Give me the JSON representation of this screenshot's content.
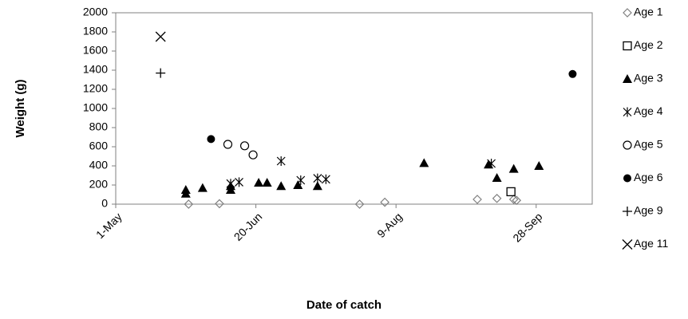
{
  "chart_data": {
    "type": "scatter",
    "x_label": "Date of catch",
    "y_label": "Weight (g)",
    "xlim": [
      "1-May",
      "18-Oct"
    ],
    "xticks": [
      "1-May",
      "20-Jun",
      "9-Aug",
      "28-Sep"
    ],
    "ylim": [
      0,
      2000
    ],
    "yticks": [
      0,
      200,
      400,
      600,
      800,
      1000,
      1200,
      1400,
      1600,
      1800,
      2000
    ],
    "grid": false,
    "legend": "right",
    "series": [
      {
        "name": "Age 1",
        "marker": "diamond-open",
        "color": "#808080",
        "x": [
          "27-May",
          "7-Jun",
          "27-Jul",
          "5-Aug",
          "7-Sep",
          "14-Sep",
          "20-Sep",
          "21-Sep"
        ],
        "values": [
          0,
          5,
          0,
          20,
          50,
          60,
          50,
          40
        ]
      },
      {
        "name": "Age 2",
        "marker": "square-open",
        "color": "#000000",
        "x": [
          "19-Sep"
        ],
        "values": [
          130
        ]
      },
      {
        "name": "Age 3",
        "marker": "triangle",
        "color": "#000000",
        "x": [
          "26-May",
          "26-May",
          "1-Jun",
          "11-Jun",
          "11-Jun",
          "21-Jun",
          "24-Jun",
          "29-Jun",
          "5-Jul",
          "12-Jul",
          "19-Aug",
          "11-Sep",
          "14-Sep",
          "20-Sep",
          "29-Sep"
        ],
        "values": [
          150,
          110,
          170,
          190,
          150,
          225,
          225,
          190,
          200,
          190,
          430,
          415,
          275,
          370,
          400
        ]
      },
      {
        "name": "Age 4",
        "marker": "star",
        "color": "#000000",
        "x": [
          "11-Jun",
          "14-Jun",
          "29-Jun",
          "6-Jul",
          "12-Jul",
          "15-Jul",
          "12-Sep"
        ],
        "values": [
          215,
          230,
          450,
          250,
          270,
          260,
          425
        ]
      },
      {
        "name": "Age 5",
        "marker": "circle-open",
        "color": "#000000",
        "x": [
          "10-Jun",
          "16-Jun",
          "19-Jun"
        ],
        "values": [
          625,
          610,
          515
        ]
      },
      {
        "name": "Age 6",
        "marker": "circle",
        "color": "#000000",
        "x": [
          "4-Jun",
          "11-Oct"
        ],
        "values": [
          680,
          1360
        ]
      },
      {
        "name": "Age 9",
        "marker": "plus",
        "color": "#000000",
        "x": [
          "17-May"
        ],
        "values": [
          1370
        ]
      },
      {
        "name": "Age 11",
        "marker": "cross",
        "color": "#000000",
        "x": [
          "17-May"
        ],
        "values": [
          1750
        ]
      }
    ]
  }
}
